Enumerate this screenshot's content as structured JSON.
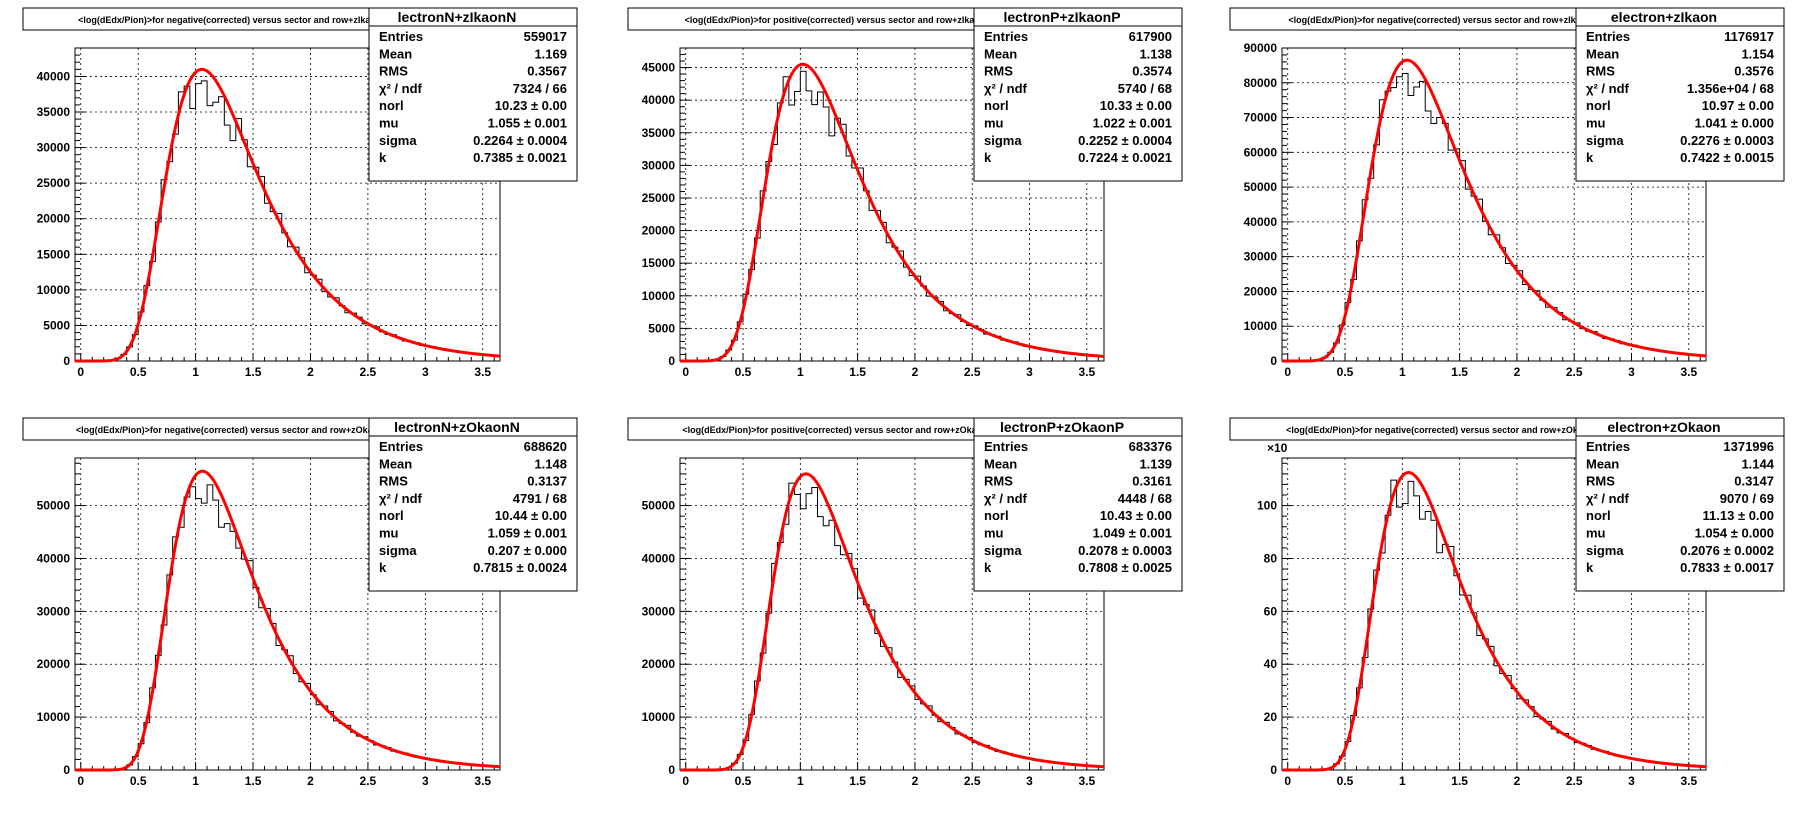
{
  "page": {
    "background": "#ffffff"
  },
  "colors": {
    "histogram": "#000000",
    "fit": "#ff0000",
    "grid": "#000000"
  },
  "chart_data": [
    {
      "type": "histogram-with-fit",
      "title": "<log(dEdx/Pion)>for negative(corrected) versus sector and row+zIkaonN",
      "stats_name": "lectronN+zIkaonN",
      "stats": [
        {
          "label": "Entries",
          "value": "559017"
        },
        {
          "label": "Mean",
          "value": "1.169"
        },
        {
          "label": "RMS",
          "value": "0.3567"
        },
        {
          "label": "χ² / ndf",
          "value": "7324 / 66"
        },
        {
          "label": "norl",
          "value": "10.23 ± 0.00"
        },
        {
          "label": "mu",
          "value": "1.055 ± 0.001"
        },
        {
          "label": "sigma",
          "value": "0.2264 ± 0.0004"
        },
        {
          "label": "k",
          "value": "0.7385 ± 0.0021"
        }
      ],
      "xlim": [
        -0.05,
        3.65
      ],
      "ylim": [
        0,
        44000
      ],
      "xticks": [
        "0",
        "0.5",
        "1",
        "1.5",
        "2",
        "2.5",
        "3",
        "3.5"
      ],
      "yticks": [
        "0",
        "5000",
        "10000",
        "15000",
        "20000",
        "25000",
        "30000",
        "35000",
        "40000"
      ],
      "y_multiplier": "",
      "peak": 41000,
      "mu": 1.055,
      "sigma": 0.2264,
      "k": 0.7385,
      "grid": true
    },
    {
      "type": "histogram-with-fit",
      "title": "<log(dEdx/Pion)>for positive(corrected) versus sector and row+zIkaonP",
      "stats_name": "lectronP+zIkaonP",
      "stats": [
        {
          "label": "Entries",
          "value": "617900"
        },
        {
          "label": "Mean",
          "value": "1.138"
        },
        {
          "label": "RMS",
          "value": "0.3574"
        },
        {
          "label": "χ² / ndf",
          "value": "5740 / 68"
        },
        {
          "label": "norl",
          "value": "10.33 ± 0.00"
        },
        {
          "label": "mu",
          "value": "1.022 ± 0.001"
        },
        {
          "label": "sigma",
          "value": "0.2252 ± 0.0004"
        },
        {
          "label": "k",
          "value": "0.7224 ± 0.0021"
        }
      ],
      "xlim": [
        -0.05,
        3.65
      ],
      "ylim": [
        0,
        48000
      ],
      "xticks": [
        "0",
        "0.5",
        "1",
        "1.5",
        "2",
        "2.5",
        "3",
        "3.5"
      ],
      "yticks": [
        "0",
        "5000",
        "10000",
        "15000",
        "20000",
        "25000",
        "30000",
        "35000",
        "40000",
        "45000"
      ],
      "y_multiplier": "",
      "peak": 45500,
      "mu": 1.022,
      "sigma": 0.2252,
      "k": 0.7224,
      "grid": true
    },
    {
      "type": "histogram-with-fit",
      "title": "<log(dEdx/Pion)>for negative(corrected) versus sector and row+zIkaon",
      "stats_name": "electron+zIkaon",
      "stats": [
        {
          "label": "Entries",
          "value": "1176917"
        },
        {
          "label": "Mean",
          "value": "1.154"
        },
        {
          "label": "RMS",
          "value": "0.3576"
        },
        {
          "label": "χ² / ndf",
          "value": "1.356e+04 / 68"
        },
        {
          "label": "norl",
          "value": "10.97 ± 0.00"
        },
        {
          "label": "mu",
          "value": "1.041 ± 0.000"
        },
        {
          "label": "sigma",
          "value": "0.2276 ± 0.0003"
        },
        {
          "label": "k",
          "value": "0.7422 ± 0.0015"
        }
      ],
      "xlim": [
        -0.05,
        3.65
      ],
      "ylim": [
        0,
        90000
      ],
      "xticks": [
        "0",
        "0.5",
        "1",
        "1.5",
        "2",
        "2.5",
        "3",
        "3.5"
      ],
      "yticks": [
        "0",
        "10000",
        "20000",
        "30000",
        "40000",
        "50000",
        "60000",
        "70000",
        "80000",
        "90000"
      ],
      "y_multiplier": "",
      "peak": 86500,
      "mu": 1.041,
      "sigma": 0.2276,
      "k": 0.7422,
      "grid": true
    },
    {
      "type": "histogram-with-fit",
      "title": "<log(dEdx/Pion)>for negative(corrected) versus sector and row+zOkaonN",
      "stats_name": "lectronN+zOkaonN",
      "stats": [
        {
          "label": "Entries",
          "value": "688620"
        },
        {
          "label": "Mean",
          "value": "1.148"
        },
        {
          "label": "RMS",
          "value": "0.3137"
        },
        {
          "label": "χ² / ndf",
          "value": "4791 / 68"
        },
        {
          "label": "norl",
          "value": "10.44 ± 0.00"
        },
        {
          "label": "mu",
          "value": "1.059 ± 0.001"
        },
        {
          "label": "sigma",
          "value": "0.207 ± 0.000"
        },
        {
          "label": "k",
          "value": "0.7815 ± 0.0024"
        }
      ],
      "xlim": [
        -0.05,
        3.65
      ],
      "ylim": [
        0,
        59000
      ],
      "xticks": [
        "0",
        "0.5",
        "1",
        "1.5",
        "2",
        "2.5",
        "3",
        "3.5"
      ],
      "yticks": [
        "0",
        "10000",
        "20000",
        "30000",
        "40000",
        "50000"
      ],
      "y_multiplier": "",
      "peak": 56500,
      "mu": 1.059,
      "sigma": 0.207,
      "k": 0.7815,
      "grid": true
    },
    {
      "type": "histogram-with-fit",
      "title": "<log(dEdx/Pion)>for positive(corrected) versus sector and row+zOkaonP",
      "stats_name": "lectronP+zOkaonP",
      "stats": [
        {
          "label": "Entries",
          "value": "683376"
        },
        {
          "label": "Mean",
          "value": "1.139"
        },
        {
          "label": "RMS",
          "value": "0.3161"
        },
        {
          "label": "χ² / ndf",
          "value": "4448 / 68"
        },
        {
          "label": "norl",
          "value": "10.43 ± 0.00"
        },
        {
          "label": "mu",
          "value": "1.049 ± 0.001"
        },
        {
          "label": "sigma",
          "value": "0.2078 ± 0.0003"
        },
        {
          "label": "k",
          "value": "0.7808 ± 0.0025"
        }
      ],
      "xlim": [
        -0.05,
        3.65
      ],
      "ylim": [
        0,
        59000
      ],
      "xticks": [
        "0",
        "0.5",
        "1",
        "1.5",
        "2",
        "2.5",
        "3",
        "3.5"
      ],
      "yticks": [
        "0",
        "10000",
        "20000",
        "30000",
        "40000",
        "50000"
      ],
      "y_multiplier": "",
      "peak": 56000,
      "mu": 1.049,
      "sigma": 0.2078,
      "k": 0.7808,
      "grid": true
    },
    {
      "type": "histogram-with-fit",
      "title": "<log(dEdx/Pion)>for negative(corrected) versus sector and row+zOkaon",
      "stats_name": "electron+zOkaon",
      "stats": [
        {
          "label": "Entries",
          "value": "1371996"
        },
        {
          "label": "Mean",
          "value": "1.144"
        },
        {
          "label": "RMS",
          "value": "0.3147"
        },
        {
          "label": "χ² / ndf",
          "value": "9070 / 69"
        },
        {
          "label": "norl",
          "value": "11.13 ± 0.00"
        },
        {
          "label": "mu",
          "value": "1.054 ± 0.000"
        },
        {
          "label": "sigma",
          "value": "0.2076 ± 0.0002"
        },
        {
          "label": "k",
          "value": "0.7833 ± 0.0017"
        }
      ],
      "xlim": [
        -0.05,
        3.65
      ],
      "ylim": [
        0,
        118
      ],
      "xticks": [
        "0",
        "0.5",
        "1",
        "1.5",
        "2",
        "2.5",
        "3",
        "3.5"
      ],
      "yticks": [
        "0",
        "20",
        "40",
        "60",
        "80",
        "100"
      ],
      "y_multiplier": "×10",
      "peak": 112.5,
      "mu": 1.054,
      "sigma": 0.2076,
      "k": 0.7833,
      "grid": true
    }
  ]
}
